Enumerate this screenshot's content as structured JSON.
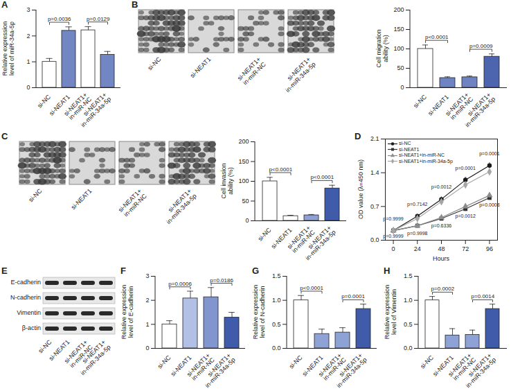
{
  "chart_data": [
    {
      "panel": "A",
      "type": "bar",
      "ylabel": "Relative expression level of miR-34a-5p",
      "categories": [
        "si-NC",
        "si-NEAT1",
        "si-NEAT1+in-miR-NC",
        "si-NEAT1+in-miR-34a-5p"
      ],
      "values": [
        1.0,
        2.2,
        2.22,
        1.27
      ],
      "errors": [
        0.13,
        0.15,
        0.14,
        0.13
      ],
      "colors": [
        "#ffffff",
        "#7386c4",
        "#ffffff",
        "#7386c4"
      ],
      "ylim": [
        0,
        3
      ],
      "yticks": [
        0,
        1,
        2,
        3
      ],
      "comparisons": [
        {
          "pair": [
            "si-NC",
            "si-NEAT1"
          ],
          "label": "p=0.0036"
        },
        {
          "pair": [
            "si-NEAT1+in-miR-NC",
            "si-NEAT1+in-miR-34a-5p"
          ],
          "label": "p=0.0129"
        }
      ]
    },
    {
      "panel": "B",
      "type": "bar",
      "ylabel": "Cell migration ability (%)",
      "categories": [
        "si-NC",
        "si-NEAT1",
        "si-NEAT1+in-miR-NC",
        "si-NEAT1+in-miR-34a-5p"
      ],
      "values": [
        100,
        25,
        27,
        80
      ],
      "errors": [
        10,
        3,
        3,
        7
      ],
      "colors": [
        "#ffffff",
        "#6f82c2",
        "#6f82c2",
        "#4d65ae"
      ],
      "ylim": [
        0,
        200
      ],
      "yticks": [
        0,
        50,
        100,
        150,
        200
      ],
      "comparisons": [
        {
          "pair": [
            "si-NC",
            "si-NEAT1"
          ],
          "label": "p<0.0001"
        },
        {
          "pair": [
            "si-NEAT1+in-miR-NC",
            "si-NEAT1+in-miR-34a-5p"
          ],
          "label": "p=0.0009"
        }
      ]
    },
    {
      "panel": "C",
      "type": "bar",
      "ylabel": "Cell invasion ability (%)",
      "categories": [
        "si-NC",
        "si-NEAT1",
        "si-NEAT1+in-miR-NC",
        "si-NEAT1+in-miR-34a-5p"
      ],
      "values": [
        100,
        12,
        14,
        82
      ],
      "errors": [
        10,
        2,
        2,
        8
      ],
      "colors": [
        "#ffffff",
        "#ffffff",
        "#8ea0d4",
        "#3f5ba9"
      ],
      "ylim": [
        0,
        200
      ],
      "yticks": [
        0,
        50,
        100,
        150,
        200
      ],
      "comparisons": [
        {
          "pair": [
            "si-NC",
            "si-NEAT1"
          ],
          "label": "p<0.0001"
        },
        {
          "pair": [
            "si-NEAT1+in-miR-NC",
            "si-NEAT1+in-miR-34a-5p"
          ],
          "label": "p<0.0001"
        }
      ]
    },
    {
      "panel": "D",
      "type": "line",
      "xlabel": "Hours",
      "ylabel": "OD value (λ=450 nm)",
      "x": [
        0,
        24,
        48,
        72,
        96
      ],
      "xlim": [
        -8,
        104
      ],
      "xticks": [
        0,
        24,
        48,
        72,
        96
      ],
      "ylim": [
        0,
        2.1
      ],
      "yticks": [
        {
          "value": 0,
          "label": "0.0"
        },
        0.7,
        1.4,
        2.1
      ],
      "legend": "top-left",
      "series": [
        {
          "name": "si-NC",
          "color": "#1a1a1a",
          "marker": "circle",
          "values": [
            0.2,
            0.5,
            0.85,
            1.25,
            1.55
          ],
          "errors": [
            0.02,
            0.04,
            0.05,
            0.06,
            0.06
          ]
        },
        {
          "name": "si-NEAT1",
          "color": "#333333",
          "marker": "square",
          "values": [
            0.2,
            0.3,
            0.45,
            0.65,
            0.88
          ],
          "errors": [
            0.02,
            0.03,
            0.04,
            0.05,
            0.05
          ]
        },
        {
          "name": "si-NEAT1+in-miR-NC",
          "color": "#8c8c8c",
          "marker": "triangle",
          "values": [
            0.2,
            0.3,
            0.47,
            0.7,
            0.93
          ],
          "errors": [
            0.02,
            0.03,
            0.04,
            0.05,
            0.05
          ]
        },
        {
          "name": "si-NEAT1+in-miR-34a-5p",
          "color": "#a6a6a6",
          "marker": "diamond",
          "values": [
            0.2,
            0.45,
            0.8,
            1.15,
            1.42
          ],
          "errors": [
            0.02,
            0.04,
            0.05,
            0.06,
            0.06
          ]
        }
      ],
      "comparisons": [
        {
          "pair": [
            "si-NC",
            "si-NEAT1"
          ],
          "labels": [
            "p=0.9999",
            "p=0.7142",
            "p=0.0012",
            "p=0.0001",
            "p=0.0001"
          ]
        },
        {
          "pair": [
            "si-NEAT1+in-miR-NC",
            "si-NEAT1+in-miR-34a-5p"
          ],
          "labels": [
            "p=0.9999",
            "p=0.9998",
            "p=0.6336",
            "p=0.0012",
            "p=0.0008"
          ]
        }
      ]
    },
    {
      "panel": "F",
      "type": "bar",
      "ylabel": "Relative expression level of E-cadherin",
      "categories": [
        "si-NC",
        "si-NEAT1",
        "si-NEAT1+in-miR-NC",
        "si-NEAT1+in-miR-34a-5p"
      ],
      "values": [
        1.0,
        2.08,
        2.13,
        1.28
      ],
      "errors": [
        0.15,
        0.3,
        0.4,
        0.22
      ],
      "colors": [
        "#ffffff",
        "#b3c0e6",
        "#8196cf",
        "#3f5ba9"
      ],
      "ylim": [
        0,
        3
      ],
      "yticks": [
        0,
        1,
        2,
        3
      ],
      "comparisons": [
        {
          "pair": [
            "si-NC",
            "si-NEAT1"
          ],
          "label": "p=0.0006"
        },
        {
          "pair": [
            "si-NEAT1+in-miR-NC",
            "si-NEAT1+in-miR-34a-5p"
          ],
          "label": "p=0.0186"
        }
      ]
    },
    {
      "panel": "G",
      "type": "bar",
      "ylabel": "Relative expression level of N-cadherin",
      "categories": [
        "si-NC",
        "si-NEAT1",
        "si-NEAT1+in-miR-NC",
        "si-NEAT1+in-miR-34a-5p"
      ],
      "values": [
        1.0,
        0.3,
        0.33,
        0.82
      ],
      "errors": [
        0.1,
        0.1,
        0.1,
        0.1
      ],
      "colors": [
        "#ffffff",
        "#8fa2d6",
        "#8fa2d6",
        "#3f5ba9"
      ],
      "ylim": [
        0,
        1.5
      ],
      "yticks": [
        {
          "value": 0,
          "label": "0.0"
        },
        0.5,
        {
          "value": 1,
          "label": "1.0"
        },
        1.5
      ],
      "comparisons": [
        {
          "pair": [
            "si-NC",
            "si-NEAT1"
          ],
          "label": "p<0.0001"
        },
        {
          "pair": [
            "si-NEAT1+in-miR-NC",
            "si-NEAT1+in-miR-34a-5p"
          ],
          "label": "p=0.0001"
        }
      ]
    },
    {
      "panel": "H",
      "type": "bar",
      "ylabel": "Relative expression level of Vimentin",
      "categories": [
        "si-NC",
        "si-NEAT1",
        "si-NEAT1+in-miR-NC",
        "si-NEAT1+in-miR-34a-5p"
      ],
      "values": [
        1.0,
        0.27,
        0.28,
        0.82
      ],
      "errors": [
        0.08,
        0.14,
        0.1,
        0.1
      ],
      "colors": [
        "#ffffff",
        "#8fa2d6",
        "#8fa2d6",
        "#3f5ba9"
      ],
      "ylim": [
        0,
        1.5
      ],
      "yticks": [
        {
          "value": 0,
          "label": "0.0"
        },
        0.5,
        {
          "value": 1,
          "label": "1.0"
        },
        1.5
      ],
      "comparisons": [
        {
          "pair": [
            "si-NC",
            "si-NEAT1"
          ],
          "label": "p=0.0002"
        },
        {
          "pair": [
            "si-NEAT1+in-miR-NC",
            "si-NEAT1+in-miR-34a-5p"
          ],
          "label": "p=0.0014"
        }
      ]
    }
  ],
  "image_panels": [
    {
      "panel": "B",
      "captions": [
        "si-NC",
        "si-NEAT1",
        "si-NEAT1+in-miR-NC",
        "si-NEAT1+in-miR-34a-5p"
      ]
    },
    {
      "panel": "C",
      "captions": [
        "si-NC",
        "si-NEAT1",
        "si-NEAT1+in-miR-NC",
        "si-NEAT1+in-miR-34a-5p"
      ]
    }
  ],
  "blot": {
    "panel": "E",
    "rows": [
      "E-cadherin",
      "N-cadherin",
      "Vimentin",
      "β-actin"
    ],
    "columns": [
      "si-NC",
      "si-NEAT1",
      "si-NEAT1+in-miR-NC",
      "si-NEAT1+in-miR-34a-5p"
    ]
  }
}
